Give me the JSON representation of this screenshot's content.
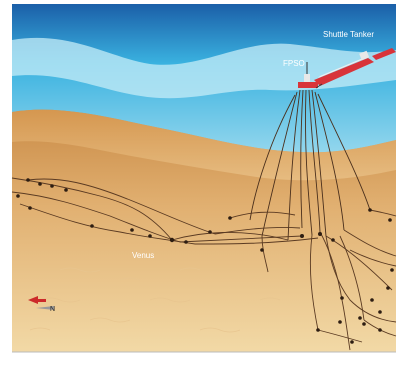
{
  "labels": {
    "shuttle_tanker": "Shuttle Tanker",
    "fpso": "FPSO",
    "venus": "Venus",
    "compass_letter": "N"
  },
  "colors": {
    "sky_top": "#1b5fa8",
    "sea_light": "#a8dff0",
    "sea_mid": "#3ab2e0",
    "seabed_top": "#c98a45",
    "seabed_bottom": "#f2d9a6",
    "pipeline": "#5a3a22",
    "vessel_hull": "#d8343a"
  },
  "icons": {
    "compass": "north-arrow-icon"
  }
}
